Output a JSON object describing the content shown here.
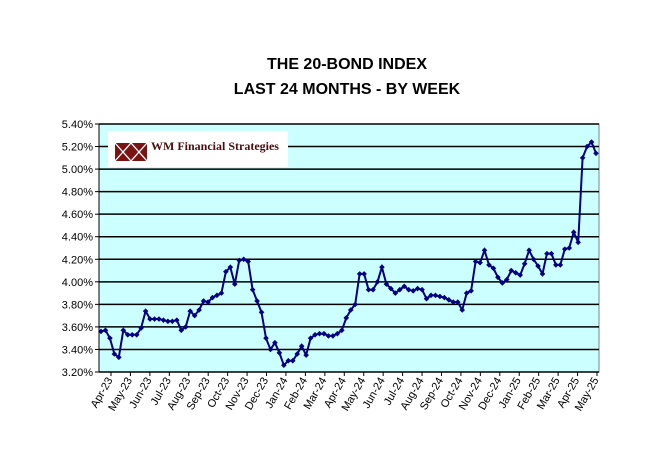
{
  "chart_data": {
    "type": "line",
    "title": "THE 20-BOND INDEX",
    "subtitle": "LAST 24 MONTHS - BY WEEK",
    "xlabel": "",
    "ylabel": "",
    "ylim": [
      3.2,
      5.4
    ],
    "ytick_values": [
      3.2,
      3.4,
      3.6,
      3.8,
      4.0,
      4.2,
      4.4,
      4.6,
      4.8,
      5.0,
      5.2,
      5.4
    ],
    "ytick_labels": [
      "3.20%",
      "3.40%",
      "3.60%",
      "3.80%",
      "4.00%",
      "4.20%",
      "4.40%",
      "4.60%",
      "4.80%",
      "5.00%",
      "5.20%",
      "5.40%"
    ],
    "xtick_labels": [
      "Apr-23",
      "May-23",
      "Jun-23",
      "Jul-23",
      "Aug-23",
      "Sep-23",
      "Oct-23",
      "Nov-23",
      "Dec-23",
      "Jan-24",
      "Feb-24",
      "Mar-24",
      "Apr-24",
      "May-24",
      "Jun-24",
      "Jul-24",
      "Aug-24",
      "Sep-24",
      "Oct-24",
      "Nov-24",
      "Dec-24",
      "Jan-25",
      "Feb-25",
      "Mar-25",
      "Apr-25",
      "May-25"
    ],
    "grid": true,
    "plot_background": "#ccffff",
    "series": [
      {
        "name": "",
        "color": "#000080",
        "marker": "diamond",
        "values": [
          3.56,
          3.57,
          3.5,
          3.36,
          3.33,
          3.57,
          3.53,
          3.53,
          3.53,
          3.59,
          3.74,
          3.67,
          3.67,
          3.67,
          3.66,
          3.65,
          3.65,
          3.66,
          3.57,
          3.6,
          3.74,
          3.7,
          3.75,
          3.83,
          3.82,
          3.86,
          3.88,
          3.9,
          4.09,
          4.13,
          3.98,
          4.19,
          4.2,
          4.18,
          3.93,
          3.83,
          3.73,
          3.5,
          3.4,
          3.46,
          3.37,
          3.26,
          3.3,
          3.3,
          3.36,
          3.43,
          3.35,
          3.5,
          3.53,
          3.54,
          3.54,
          3.52,
          3.52,
          3.54,
          3.57,
          3.68,
          3.75,
          3.8,
          4.07,
          4.07,
          3.93,
          3.93,
          4.0,
          4.13,
          3.98,
          3.94,
          3.9,
          3.93,
          3.96,
          3.93,
          3.92,
          3.94,
          3.93,
          3.85,
          3.88,
          3.88,
          3.87,
          3.86,
          3.84,
          3.82,
          3.82,
          3.75,
          3.9,
          3.92,
          4.18,
          4.17,
          4.28,
          4.15,
          4.12,
          4.04,
          3.99,
          4.02,
          4.1,
          4.08,
          4.06,
          4.16,
          4.28,
          4.2,
          4.14,
          4.07,
          4.25,
          4.25,
          4.15,
          4.15,
          4.29,
          4.3,
          4.44,
          4.35,
          5.1,
          5.2,
          5.24,
          5.14
        ]
      }
    ]
  },
  "logo": {
    "text": "WM Financial Strategies",
    "mark_color": "#7a1414"
  }
}
